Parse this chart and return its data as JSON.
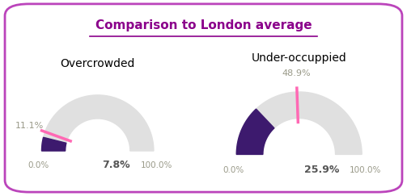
{
  "title": "Comparison to London average",
  "title_color": "#8B008B",
  "background_color": "#ffffff",
  "border_color": "#BB44BB",
  "charts": [
    {
      "label": "Overcrowded",
      "ward_value": 7.8,
      "london_value": 11.1,
      "max_value": 100.0,
      "min_value": 0.0
    },
    {
      "label": "Under-occuppied",
      "ward_value": 25.9,
      "london_value": 48.9,
      "max_value": 100.0,
      "min_value": 0.0
    }
  ],
  "arc_bg_color": "#e0e0e0",
  "ward_color": "#3d1a6e",
  "london_color": "#ff69b4",
  "label_color": "#999988",
  "ward_value_color": "#555555"
}
